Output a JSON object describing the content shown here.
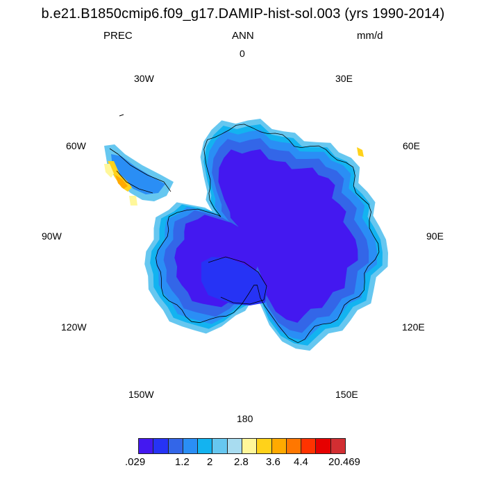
{
  "title": "b.e21.B1850cmip6.f09_g17.DAMIP-hist-sol.003 (yrs 1990-2014)",
  "left_string": "PREC",
  "center_string": "ANN",
  "right_string": "mm/d",
  "longitude_labels": {
    "top": "0",
    "top_right": "30E",
    "right_upper": "60E",
    "right": "90E",
    "right_lower": "120E",
    "bottom_right": "150E",
    "bottom": "180",
    "bottom_left": "150W",
    "left_lower": "120W",
    "left": "90W",
    "left_upper": "60W",
    "top_left": "30W"
  },
  "colorbar": {
    "colors": [
      "#4418f0",
      "#2633f5",
      "#3366e8",
      "#2a8ef5",
      "#13b3f0",
      "#66c7f0",
      "#a8dcf0",
      "#fff79a",
      "#ffd21a",
      "#ffaa00",
      "#ff7700",
      "#ff3300",
      "#e60000",
      "#d22e32"
    ],
    "labels": [
      ".029",
      "1.2",
      "2",
      "2.8",
      "3.6",
      "4.4",
      "20.469"
    ]
  },
  "map": {
    "interior_color": "#4418f0",
    "ring_colors": [
      "#2633f5",
      "#3366e8",
      "#2a8ef5",
      "#13b3f0",
      "#66c7f0"
    ],
    "peninsula_colors": [
      "#fff79a",
      "#ffd21a",
      "#ffaa00"
    ]
  }
}
